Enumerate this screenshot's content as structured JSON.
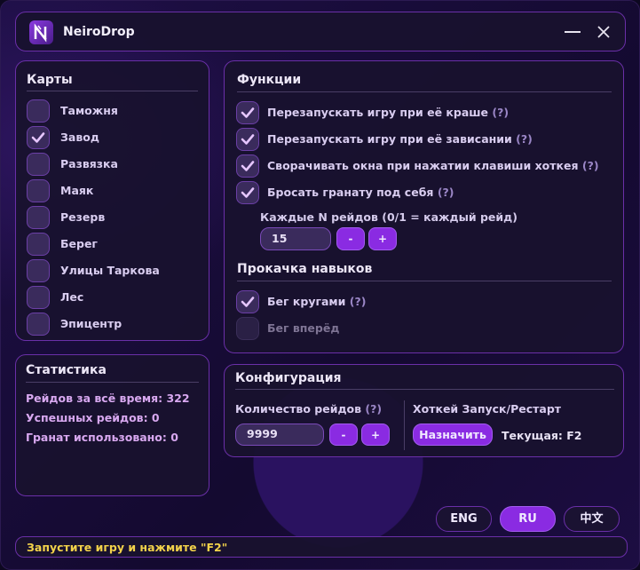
{
  "app": {
    "title": "NeiroDrop",
    "logo_icon": "neirodrop-logo",
    "minimize_icon": "minimize-icon",
    "close_icon": "close-icon"
  },
  "colors": {
    "accent": "#8a2be2",
    "status_text": "#f2d24a",
    "stat_text": "#d8a8f0"
  },
  "maps": {
    "title": "Карты",
    "items": [
      {
        "label": "Таможня",
        "checked": false
      },
      {
        "label": "Завод",
        "checked": true
      },
      {
        "label": "Развязка",
        "checked": false
      },
      {
        "label": "Маяк",
        "checked": false
      },
      {
        "label": "Резерв",
        "checked": false
      },
      {
        "label": "Берег",
        "checked": false
      },
      {
        "label": "Улицы Таркова",
        "checked": false
      },
      {
        "label": "Лес",
        "checked": false
      },
      {
        "label": "Эпицентр",
        "checked": false
      }
    ]
  },
  "functions": {
    "title": "Функции",
    "items": [
      {
        "label": "Перезапускать игру при её краше",
        "help": "(?)",
        "checked": true
      },
      {
        "label": "Перезапускать игру при её зависании",
        "help": "(?)",
        "checked": true
      },
      {
        "label": "Сворачивать окна при нажатии клавиши хоткея",
        "help": "(?)",
        "checked": true
      },
      {
        "label": "Бросать гранату под себя",
        "help": "(?)",
        "checked": true
      }
    ],
    "every_n_label": "Каждые N рейдов (0/1 = каждый рейд)",
    "every_n_value": "15",
    "minus": "-",
    "plus": "+"
  },
  "skills": {
    "title": "Прокачка навыков",
    "items": [
      {
        "label": "Бег кругами",
        "help": "(?)",
        "checked": true
      },
      {
        "label": "Бег вперёд",
        "checked": false,
        "disabled": true
      }
    ]
  },
  "stats": {
    "title": "Статистика",
    "lines": [
      "Рейдов за всё время: 322",
      "Успешных рейдов: 0",
      "Гранат использовано: 0"
    ]
  },
  "config": {
    "title": "Конфигурация",
    "raids_label": "Количество рейдов",
    "raids_help": "(?)",
    "raids_value": "9999",
    "minus": "-",
    "plus": "+",
    "hotkey_label": "Хоткей Запуск/Рестарт",
    "assign_button": "Назначить",
    "current": "Текущая: F2"
  },
  "languages": [
    {
      "label": "ENG",
      "active": false
    },
    {
      "label": "RU",
      "active": true
    },
    {
      "label": "中文",
      "active": false
    }
  ],
  "status": "Запустите игру и нажмите \"F2\""
}
